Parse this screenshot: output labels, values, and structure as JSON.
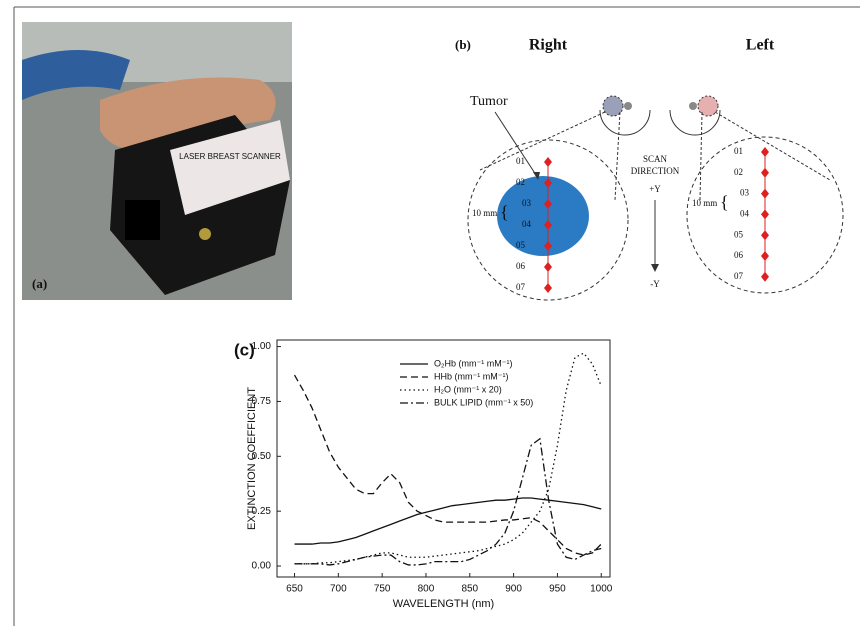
{
  "panel_a": {
    "label": "(a)",
    "device_text": "LASER BREAST SCANNER"
  },
  "panel_b": {
    "label": "(b)",
    "right_title": "Right",
    "left_title": "Left",
    "tumor_label": "Tumor",
    "scan_direction": [
      "SCAN",
      "DIRECTION"
    ],
    "plus_y": "+Y",
    "minus_y": "-Y",
    "spacing_label": "10 mm",
    "right_points": [
      "01",
      "02",
      "03",
      "04",
      "05",
      "06",
      "07"
    ],
    "left_points": [
      "01",
      "02",
      "03",
      "04",
      "05",
      "06",
      "07"
    ]
  },
  "panel_c_label": "(c)",
  "chart_data": {
    "type": "line",
    "x_label": "WAVELENGTH (nm)",
    "y_label": "EXTINCTION COEFFICIENT",
    "x": [
      650,
      660,
      670,
      680,
      690,
      700,
      710,
      720,
      730,
      740,
      750,
      760,
      770,
      780,
      790,
      800,
      810,
      820,
      830,
      840,
      850,
      860,
      870,
      880,
      890,
      900,
      910,
      920,
      930,
      940,
      950,
      960,
      970,
      980,
      990,
      1000
    ],
    "xlim": [
      630,
      1010
    ],
    "ylim": [
      -0.05,
      1.03
    ],
    "xticks": [
      650,
      700,
      750,
      800,
      850,
      900,
      950,
      1000
    ],
    "yticks": [
      {
        "value": 0,
        "label": "0.00"
      },
      {
        "value": 0.25,
        "label": "0.25"
      },
      {
        "value": 0.5,
        "label": "0.50"
      },
      {
        "value": 0.75,
        "label": "0.75"
      },
      {
        "value": 1,
        "label": "1.00"
      }
    ],
    "series": [
      {
        "name": "O₂Hb (mm⁻¹ mM⁻¹)",
        "color": "#111111",
        "line_style": "solid",
        "values": [
          0.1,
          0.1,
          0.1,
          0.105,
          0.105,
          0.11,
          0.12,
          0.13,
          0.145,
          0.16,
          0.175,
          0.19,
          0.205,
          0.22,
          0.235,
          0.245,
          0.255,
          0.265,
          0.275,
          0.28,
          0.285,
          0.29,
          0.295,
          0.3,
          0.3,
          0.305,
          0.31,
          0.31,
          0.305,
          0.3,
          0.295,
          0.29,
          0.285,
          0.28,
          0.27,
          0.26
        ]
      },
      {
        "name": "HHb (mm⁻¹ mM⁻¹)",
        "color": "#111111",
        "line_style": "dashed",
        "values": [
          0.87,
          0.8,
          0.72,
          0.62,
          0.52,
          0.45,
          0.4,
          0.35,
          0.33,
          0.33,
          0.38,
          0.42,
          0.38,
          0.29,
          0.25,
          0.23,
          0.21,
          0.2,
          0.2,
          0.2,
          0.2,
          0.2,
          0.2,
          0.205,
          0.21,
          0.21,
          0.215,
          0.22,
          0.2,
          0.16,
          0.12,
          0.08,
          0.06,
          0.05,
          0.06,
          0.1
        ]
      },
      {
        "name": "H₂O (mm⁻¹ x 20)",
        "color": "#111111",
        "line_style": "dotted",
        "values": [
          0.01,
          0.01,
          0.01,
          0.015,
          0.015,
          0.02,
          0.025,
          0.03,
          0.04,
          0.05,
          0.06,
          0.06,
          0.05,
          0.04,
          0.04,
          0.04,
          0.045,
          0.05,
          0.055,
          0.06,
          0.065,
          0.07,
          0.08,
          0.09,
          0.1,
          0.12,
          0.15,
          0.2,
          0.25,
          0.35,
          0.55,
          0.8,
          0.95,
          0.97,
          0.92,
          0.82
        ]
      },
      {
        "name": "BULK LIPID (mm⁻¹ x 50)",
        "color": "#111111",
        "line_style": "dashdot",
        "values": [
          0.01,
          0.01,
          0.01,
          0.01,
          0.005,
          0.01,
          0.02,
          0.03,
          0.04,
          0.045,
          0.05,
          0.05,
          0.02,
          0.005,
          0.005,
          0.01,
          0.02,
          0.02,
          0.02,
          0.02,
          0.03,
          0.05,
          0.07,
          0.1,
          0.15,
          0.25,
          0.4,
          0.55,
          0.58,
          0.3,
          0.1,
          0.04,
          0.03,
          0.05,
          0.07,
          0.08
        ]
      }
    ]
  }
}
